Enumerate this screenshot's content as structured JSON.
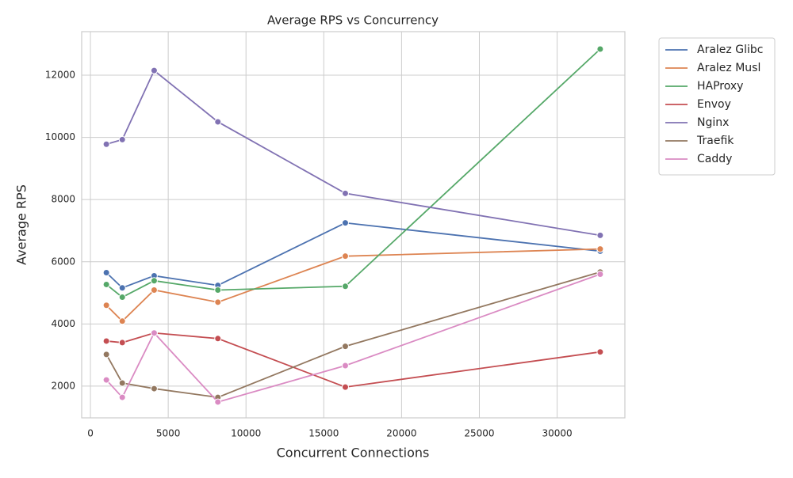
{
  "chart_data": {
    "type": "line",
    "title": "Average RPS vs Concurrency",
    "x_label": "Concurrent Connections",
    "y_label": "Average RPS",
    "x": [
      1024,
      2048,
      4096,
      8192,
      16384,
      32768
    ],
    "series": [
      {
        "name": "Aralez Glibc",
        "color": "#4c72b0",
        "values": [
          5650,
          5160,
          5550,
          5240,
          7250,
          6340
        ]
      },
      {
        "name": "Aralez Musl",
        "color": "#dd8452",
        "values": [
          4600,
          4090,
          5090,
          4700,
          6180,
          6410
        ]
      },
      {
        "name": "HAProxy",
        "color": "#55a868",
        "values": [
          5270,
          4860,
          5390,
          5090,
          5210,
          12840
        ]
      },
      {
        "name": "Envoy",
        "color": "#c44e52",
        "values": [
          3450,
          3400,
          3710,
          3530,
          1970,
          3100
        ]
      },
      {
        "name": "Nginx",
        "color": "#8172b3",
        "values": [
          9780,
          9930,
          12150,
          10500,
          8200,
          6850
        ]
      },
      {
        "name": "Traefik",
        "color": "#937860",
        "values": [
          3020,
          2100,
          1920,
          1640,
          3280,
          5670
        ]
      },
      {
        "name": "Caddy",
        "color": "#da8bc3",
        "values": [
          2200,
          1640,
          3710,
          1490,
          2660,
          5600
        ]
      }
    ],
    "xlim": [
      -563,
      34355
    ],
    "ylim": [
      980,
      13400
    ],
    "xticks": [
      0,
      5000,
      10000,
      15000,
      20000,
      25000,
      30000
    ],
    "yticks": [
      2000,
      4000,
      6000,
      8000,
      10000,
      12000
    ],
    "grid": true,
    "legend": "outside-upper-right"
  }
}
